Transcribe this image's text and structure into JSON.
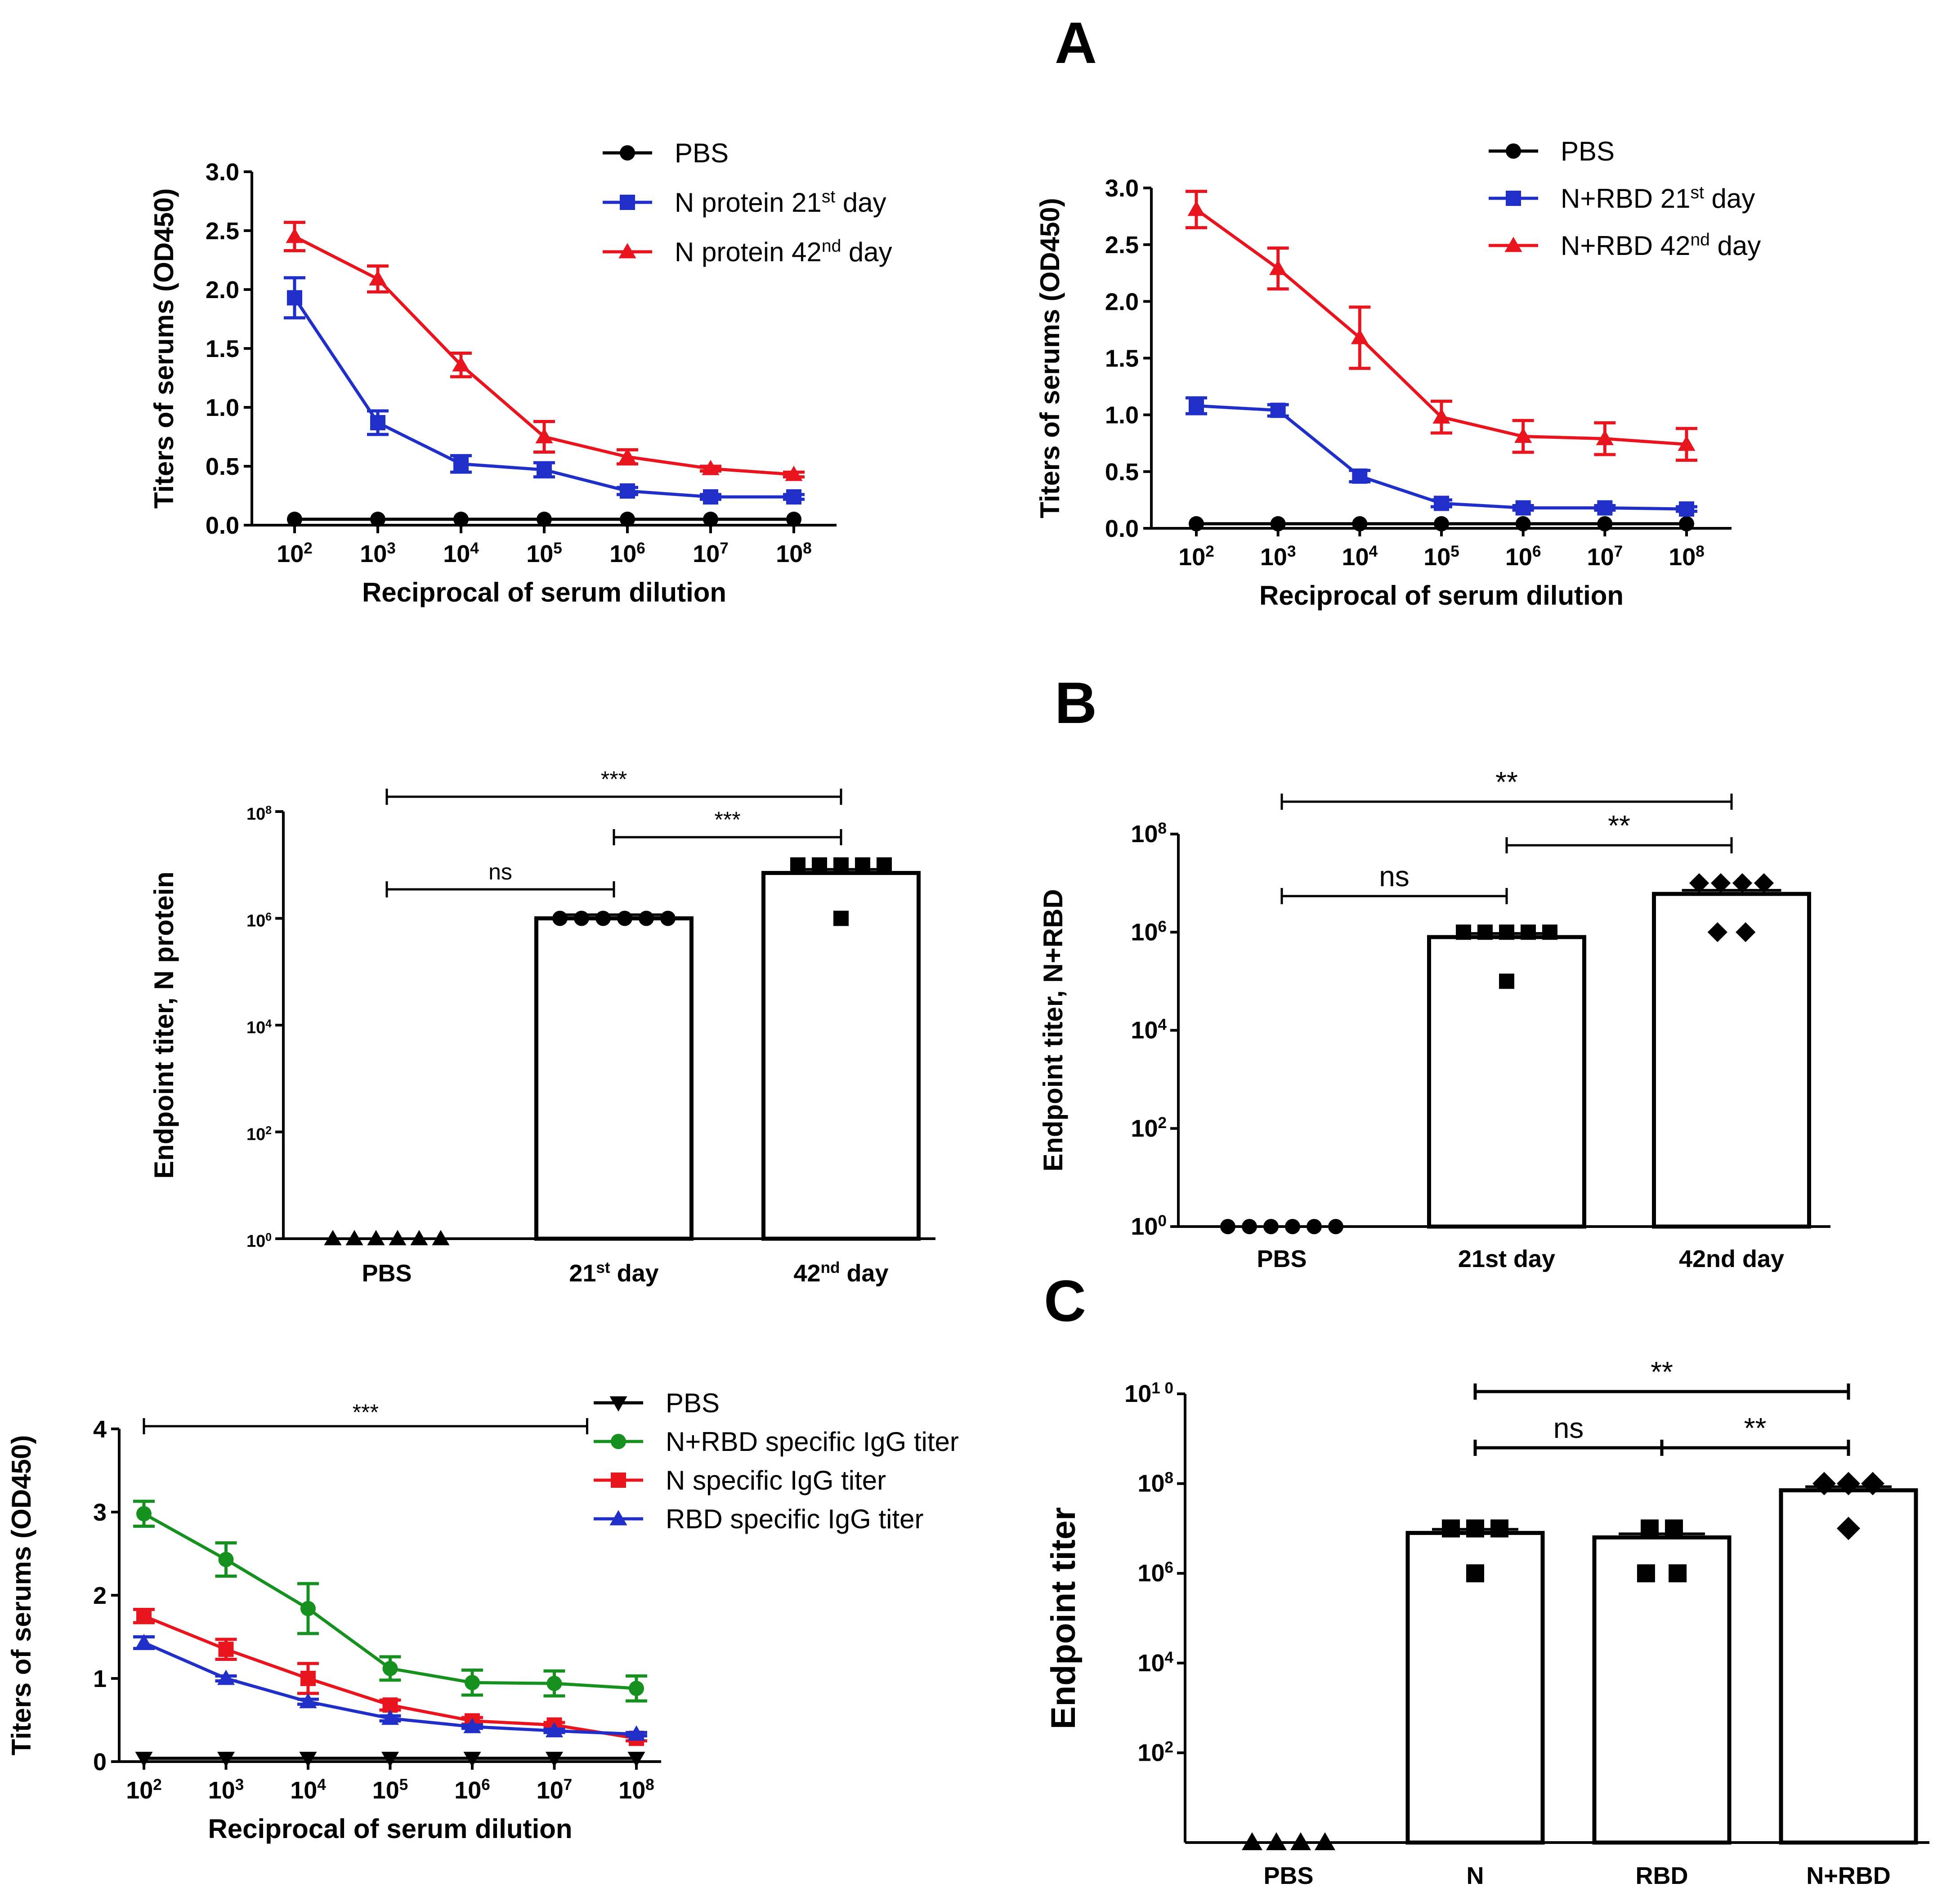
{
  "panel_labels": {
    "a": "A",
    "b": "B",
    "c": "C"
  },
  "chart_data": [
    {
      "id": "A-left",
      "type": "line",
      "xlabel": "Reciprocal of serum dilution",
      "ylabel": "Titers of serums (OD450)",
      "x_ticks": [
        {
          "base": "10",
          "exp": "2"
        },
        {
          "base": "10",
          "exp": "3"
        },
        {
          "base": "10",
          "exp": "4"
        },
        {
          "base": "10",
          "exp": "5"
        },
        {
          "base": "10",
          "exp": "6"
        },
        {
          "base": "10",
          "exp": "7"
        },
        {
          "base": "10",
          "exp": "8"
        }
      ],
      "y_ticks": [
        "0.0",
        "0.5",
        "1.0",
        "1.5",
        "2.0",
        "2.5",
        "3.0"
      ],
      "ylim": [
        0,
        3
      ],
      "series": [
        {
          "name": "PBS",
          "label": "PBS",
          "sup": "",
          "suffix": "",
          "color": "#000000",
          "marker": "circle",
          "values": [
            0.05,
            0.05,
            0.05,
            0.05,
            0.05,
            0.05,
            0.05
          ],
          "errors": [
            0,
            0,
            0,
            0,
            0,
            0,
            0
          ]
        },
        {
          "name": "N protein 21st day",
          "label": "N protein 21",
          "sup": "st",
          "suffix": " day",
          "color": "#1f2fc8",
          "marker": "square",
          "values": [
            1.93,
            0.87,
            0.52,
            0.47,
            0.29,
            0.24,
            0.24
          ],
          "errors": [
            0.17,
            0.1,
            0.07,
            0.06,
            0.03,
            0.02,
            0.02
          ]
        },
        {
          "name": "N protein 42nd day",
          "label": "N protein 42",
          "sup": "nd",
          "suffix": " day",
          "color": "#e8141e",
          "marker": "triangle",
          "values": [
            2.45,
            2.09,
            1.36,
            0.75,
            0.58,
            0.48,
            0.43
          ],
          "errors": [
            0.12,
            0.11,
            0.1,
            0.13,
            0.06,
            0.02,
            0.02
          ]
        }
      ]
    },
    {
      "id": "A-right",
      "type": "line",
      "xlabel": "Reciprocal of serum dilution",
      "ylabel": "Titers of serums (OD450)",
      "x_ticks": [
        {
          "base": "10",
          "exp": "2"
        },
        {
          "base": "10",
          "exp": "3"
        },
        {
          "base": "10",
          "exp": "4"
        },
        {
          "base": "10",
          "exp": "5"
        },
        {
          "base": "10",
          "exp": "6"
        },
        {
          "base": "10",
          "exp": "7"
        },
        {
          "base": "10",
          "exp": "8"
        }
      ],
      "y_ticks": [
        "0.0",
        "0.5",
        "1.0",
        "1.5",
        "2.0",
        "2.5",
        "3.0"
      ],
      "ylim": [
        0,
        3
      ],
      "series": [
        {
          "name": "PBS",
          "label": "PBS",
          "sup": "",
          "suffix": "",
          "color": "#000000",
          "marker": "circle",
          "values": [
            0.04,
            0.04,
            0.04,
            0.04,
            0.04,
            0.04,
            0.04
          ],
          "errors": [
            0,
            0,
            0,
            0,
            0,
            0,
            0
          ]
        },
        {
          "name": "N+RBD 21st day",
          "label": "N+RBD  21",
          "sup": "st",
          "suffix": " day",
          "color": "#1f2fc8",
          "marker": "square",
          "values": [
            1.08,
            1.04,
            0.46,
            0.22,
            0.18,
            0.18,
            0.17
          ],
          "errors": [
            0.07,
            0.05,
            0.05,
            0.03,
            0.02,
            0.02,
            0.02
          ]
        },
        {
          "name": "N+RBD 42nd day",
          "label": "N+RBD 42",
          "sup": "nd",
          "suffix": " day",
          "color": "#e8141e",
          "marker": "triangle",
          "values": [
            2.81,
            2.29,
            1.68,
            0.98,
            0.81,
            0.79,
            0.74
          ],
          "errors": [
            0.16,
            0.18,
            0.27,
            0.14,
            0.14,
            0.14,
            0.14
          ]
        }
      ]
    },
    {
      "id": "B-left",
      "type": "bar",
      "ylabel": "Endpoint titer, N protein",
      "y_scale": "log10",
      "y_ticks": [
        {
          "base": "10",
          "exp": "0"
        },
        {
          "base": "10",
          "exp": "2"
        },
        {
          "base": "10",
          "exp": "4"
        },
        {
          "base": "10",
          "exp": "6"
        },
        {
          "base": "10",
          "exp": "8"
        }
      ],
      "ylim_log10": [
        0,
        8
      ],
      "categories": [
        {
          "label": "PBS",
          "sup": "",
          "suffix": ""
        },
        {
          "label": "21",
          "sup": "st",
          "suffix": " day"
        },
        {
          "label": "42",
          "sup": "nd",
          "suffix": " day"
        }
      ],
      "bar_log10": [
        null,
        6.0,
        6.85
      ],
      "points_log10": [
        [
          0,
          0,
          0,
          0,
          0,
          0
        ],
        [
          6,
          6,
          6,
          6,
          6,
          6
        ],
        [
          7,
          7,
          7,
          7,
          7,
          6
        ]
      ],
      "markers": [
        "triangle",
        "circle",
        "square"
      ],
      "significance": [
        {
          "from": 0,
          "to": 1,
          "label": "ns"
        },
        {
          "from": 1,
          "to": 2,
          "label": "***"
        },
        {
          "from": 0,
          "to": 2,
          "label": "***"
        }
      ]
    },
    {
      "id": "B-right",
      "type": "bar",
      "ylabel": "Endpoint titer, N+RBD",
      "y_scale": "log10",
      "y_ticks": [
        {
          "base": "10",
          "exp": "0"
        },
        {
          "base": "10",
          "exp": "2"
        },
        {
          "base": "10",
          "exp": "4"
        },
        {
          "base": "10",
          "exp": "6"
        },
        {
          "base": "10",
          "exp": "8"
        }
      ],
      "ylim_log10": [
        0,
        8
      ],
      "categories": [
        {
          "label": "PBS",
          "sup": "",
          "suffix": ""
        },
        {
          "label": "21st day",
          "sup": "",
          "suffix": ""
        },
        {
          "label": "42nd day",
          "sup": "",
          "suffix": ""
        }
      ],
      "bar_log10": [
        null,
        5.9,
        6.78
      ],
      "points_log10": [
        [
          0,
          0,
          0,
          0,
          0,
          0
        ],
        [
          6,
          6,
          6,
          6,
          6,
          5
        ],
        [
          7,
          7,
          7,
          7,
          6,
          6
        ]
      ],
      "markers": [
        "circle",
        "square",
        "diamond"
      ],
      "significance": [
        {
          "from": 0,
          "to": 1,
          "label": "ns"
        },
        {
          "from": 1,
          "to": 2,
          "label": "**"
        },
        {
          "from": 0,
          "to": 2,
          "label": "**"
        }
      ]
    },
    {
      "id": "C-left",
      "type": "line",
      "xlabel": "Reciprocal of serum dilution",
      "ylabel": "Titers of serums (OD450)",
      "x_ticks": [
        {
          "base": "10",
          "exp": "2"
        },
        {
          "base": "10",
          "exp": "3"
        },
        {
          "base": "10",
          "exp": "4"
        },
        {
          "base": "10",
          "exp": "5"
        },
        {
          "base": "10",
          "exp": "6"
        },
        {
          "base": "10",
          "exp": "7"
        },
        {
          "base": "10",
          "exp": "8"
        }
      ],
      "y_ticks": [
        "0",
        "1",
        "2",
        "3",
        "4"
      ],
      "ylim": [
        0,
        4
      ],
      "significance": {
        "from": 1.5,
        "to": 7.5,
        "label": "***"
      },
      "series": [
        {
          "name": "PBS",
          "label": "PBS",
          "color": "#000000",
          "marker": "triangle-down",
          "values": [
            0.04,
            0.04,
            0.04,
            0.04,
            0.04,
            0.04,
            0.04
          ],
          "errors": [
            0,
            0,
            0,
            0,
            0,
            0,
            0
          ]
        },
        {
          "name": "N+RBD specific IgG titer",
          "label": "N+RBD specific IgG titer",
          "color": "#16911f",
          "marker": "circle",
          "values": [
            2.98,
            2.43,
            1.84,
            1.12,
            0.95,
            0.94,
            0.88
          ],
          "errors": [
            0.15,
            0.2,
            0.3,
            0.14,
            0.15,
            0.15,
            0.15
          ]
        },
        {
          "name": "N specific IgG titer",
          "label": "N specific IgG titer",
          "color": "#e8141e",
          "marker": "square",
          "values": [
            1.75,
            1.35,
            1.0,
            0.68,
            0.49,
            0.44,
            0.28
          ],
          "errors": [
            0.08,
            0.12,
            0.18,
            0.06,
            0.04,
            0.03,
            0.03
          ]
        },
        {
          "name": "RBD specific IgG titer",
          "label": "RBD specific IgG titer",
          "color": "#1f2fc8",
          "marker": "triangle",
          "values": [
            1.43,
            1.0,
            0.72,
            0.52,
            0.42,
            0.37,
            0.33
          ],
          "errors": [
            0.07,
            0.03,
            0.03,
            0.03,
            0.02,
            0.02,
            0.02
          ]
        }
      ]
    },
    {
      "id": "C-right",
      "type": "bar",
      "ylabel": "Endpoint titer",
      "y_scale": "log10",
      "y_ticks": [
        {
          "base": "10",
          "exp": "2"
        },
        {
          "base": "10",
          "exp": "4"
        },
        {
          "base": "10",
          "exp": "6"
        },
        {
          "base": "10",
          "exp": "8"
        },
        {
          "base": "10",
          "exp": "1 0"
        }
      ],
      "ylim_log10": [
        0,
        10
      ],
      "categories": [
        {
          "label": "PBS",
          "sup": "",
          "suffix": ""
        },
        {
          "label": "N",
          "sup": "",
          "suffix": ""
        },
        {
          "label": "RBD",
          "sup": "",
          "suffix": ""
        },
        {
          "label": "N+RBD",
          "sup": "",
          "suffix": ""
        }
      ],
      "bar_log10": [
        null,
        6.9,
        6.8,
        7.85
      ],
      "points_log10": [
        [
          0,
          0,
          0,
          0
        ],
        [
          7,
          7,
          7,
          6
        ],
        [
          7,
          7,
          6,
          6
        ],
        [
          8,
          8,
          8,
          7
        ]
      ],
      "markers": [
        "triangle",
        "square",
        "square",
        "diamond"
      ],
      "significance": [
        {
          "from": 1,
          "to": 2,
          "label": "ns"
        },
        {
          "from": 2,
          "to": 3,
          "label": "**"
        },
        {
          "from": 1,
          "to": 3,
          "label": "**"
        }
      ]
    }
  ]
}
